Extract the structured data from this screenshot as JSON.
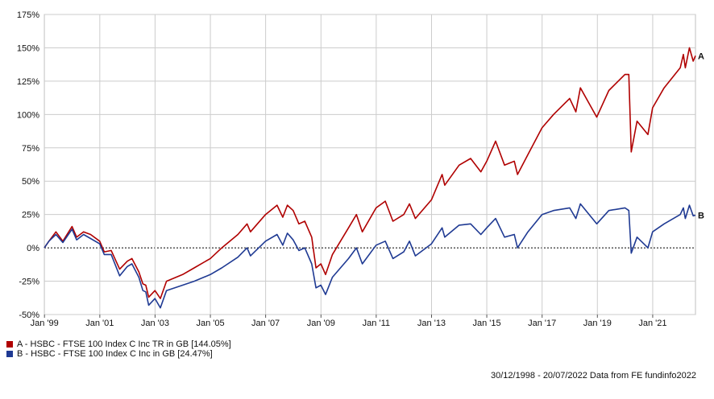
{
  "chart_data": {
    "type": "line",
    "ylim": [
      -50,
      175
    ],
    "y_ticks": [
      -50,
      -25,
      0,
      25,
      50,
      75,
      100,
      125,
      150,
      175
    ],
    "y_tick_labels": [
      "-50%",
      "-25%",
      "0%",
      "25%",
      "50%",
      "75%",
      "100%",
      "125%",
      "150%",
      "175%"
    ],
    "x_range": [
      "1998-12-30",
      "2022-07-20"
    ],
    "x_ticks": [
      "1999-01-01",
      "2001-01-01",
      "2003-01-01",
      "2005-01-01",
      "2007-01-01",
      "2009-01-01",
      "2011-01-01",
      "2013-01-01",
      "2015-01-01",
      "2017-01-01",
      "2019-01-01",
      "2021-01-01"
    ],
    "x_tick_labels": [
      "Jan '99",
      "Jan '01",
      "Jan '03",
      "Jan '05",
      "Jan '07",
      "Jan '09",
      "Jan '11",
      "Jan '13",
      "Jan '15",
      "Jan '17",
      "Jan '19",
      "Jan '21"
    ],
    "grid": true,
    "zero_line": "dotted",
    "legend_position": "bottom-left",
    "series": [
      {
        "name": "A - HSBC - FTSE 100 Index C Inc TR in GB [144.05%]",
        "end_label": "A",
        "color": "#b00000",
        "points": [
          [
            "1998-12-30",
            0
          ],
          [
            "1999-03-01",
            5
          ],
          [
            "1999-06-01",
            12
          ],
          [
            "1999-09-01",
            5
          ],
          [
            "1999-12-31",
            16
          ],
          [
            "2000-03-01",
            8
          ],
          [
            "2000-06-01",
            12
          ],
          [
            "2000-09-01",
            10
          ],
          [
            "2000-12-31",
            5
          ],
          [
            "2001-03-01",
            -3
          ],
          [
            "2001-06-01",
            -2
          ],
          [
            "2001-09-20",
            -16
          ],
          [
            "2001-12-31",
            -10
          ],
          [
            "2002-03-01",
            -8
          ],
          [
            "2002-06-01",
            -18
          ],
          [
            "2002-07-24",
            -27
          ],
          [
            "2002-09-01",
            -28
          ],
          [
            "2002-10-09",
            -37
          ],
          [
            "2002-12-31",
            -32
          ],
          [
            "2003-03-12",
            -38
          ],
          [
            "2003-06-01",
            -25
          ],
          [
            "2003-12-31",
            -20
          ],
          [
            "2004-06-01",
            -15
          ],
          [
            "2004-12-31",
            -8
          ],
          [
            "2005-06-01",
            0
          ],
          [
            "2005-12-31",
            10
          ],
          [
            "2006-05-01",
            18
          ],
          [
            "2006-06-15",
            12
          ],
          [
            "2006-12-31",
            25
          ],
          [
            "2007-06-01",
            32
          ],
          [
            "2007-08-15",
            23
          ],
          [
            "2007-10-15",
            32
          ],
          [
            "2007-12-31",
            28
          ],
          [
            "2008-03-15",
            18
          ],
          [
            "2008-06-01",
            20
          ],
          [
            "2008-09-01",
            8
          ],
          [
            "2008-10-27",
            -15
          ],
          [
            "2008-12-31",
            -12
          ],
          [
            "2009-03-03",
            -20
          ],
          [
            "2009-06-01",
            -5
          ],
          [
            "2009-12-31",
            15
          ],
          [
            "2010-04-15",
            25
          ],
          [
            "2010-07-01",
            12
          ],
          [
            "2010-12-31",
            30
          ],
          [
            "2011-05-01",
            35
          ],
          [
            "2011-08-10",
            20
          ],
          [
            "2011-12-31",
            25
          ],
          [
            "2012-03-15",
            33
          ],
          [
            "2012-06-01",
            22
          ],
          [
            "2012-12-31",
            36
          ],
          [
            "2013-05-20",
            55
          ],
          [
            "2013-06-25",
            47
          ],
          [
            "2013-12-31",
            62
          ],
          [
            "2014-06-01",
            67
          ],
          [
            "2014-10-15",
            57
          ],
          [
            "2014-12-31",
            65
          ],
          [
            "2015-04-27",
            80
          ],
          [
            "2015-08-24",
            62
          ],
          [
            "2015-12-31",
            65
          ],
          [
            "2016-02-11",
            55
          ],
          [
            "2016-06-27",
            70
          ],
          [
            "2016-12-31",
            90
          ],
          [
            "2017-06-01",
            100
          ],
          [
            "2017-12-31",
            112
          ],
          [
            "2018-03-23",
            102
          ],
          [
            "2018-05-22",
            120
          ],
          [
            "2018-12-24",
            98
          ],
          [
            "2019-06-01",
            118
          ],
          [
            "2019-12-31",
            130
          ],
          [
            "2020-02-20",
            130
          ],
          [
            "2020-03-23",
            72
          ],
          [
            "2020-06-08",
            95
          ],
          [
            "2020-10-30",
            85
          ],
          [
            "2020-12-31",
            105
          ],
          [
            "2021-06-01",
            120
          ],
          [
            "2021-12-31",
            135
          ],
          [
            "2022-02-10",
            145
          ],
          [
            "2022-03-08",
            135
          ],
          [
            "2022-05-01",
            150
          ],
          [
            "2022-06-20",
            140
          ],
          [
            "2022-07-20",
            144.05
          ]
        ]
      },
      {
        "name": "B - HSBC - FTSE 100 Index C Inc in GB [24.47%]",
        "end_label": "B",
        "color": "#1f3a93",
        "points": [
          [
            "1998-12-30",
            0
          ],
          [
            "1999-03-01",
            5
          ],
          [
            "1999-06-01",
            10
          ],
          [
            "1999-09-01",
            4
          ],
          [
            "1999-12-31",
            14
          ],
          [
            "2000-03-01",
            6
          ],
          [
            "2000-06-01",
            10
          ],
          [
            "2000-09-01",
            7
          ],
          [
            "2000-12-31",
            3
          ],
          [
            "2001-03-01",
            -5
          ],
          [
            "2001-06-01",
            -5
          ],
          [
            "2001-09-20",
            -21
          ],
          [
            "2001-12-31",
            -14
          ],
          [
            "2002-03-01",
            -12
          ],
          [
            "2002-06-01",
            -22
          ],
          [
            "2002-07-24",
            -32
          ],
          [
            "2002-09-01",
            -33
          ],
          [
            "2002-10-09",
            -43
          ],
          [
            "2002-12-31",
            -38
          ],
          [
            "2003-03-12",
            -45
          ],
          [
            "2003-06-01",
            -32
          ],
          [
            "2003-12-31",
            -28
          ],
          [
            "2004-06-01",
            -25
          ],
          [
            "2004-12-31",
            -20
          ],
          [
            "2005-06-01",
            -15
          ],
          [
            "2005-12-31",
            -7
          ],
          [
            "2006-05-01",
            0
          ],
          [
            "2006-06-15",
            -6
          ],
          [
            "2006-12-31",
            5
          ],
          [
            "2007-06-01",
            10
          ],
          [
            "2007-08-15",
            2
          ],
          [
            "2007-10-15",
            11
          ],
          [
            "2007-12-31",
            6
          ],
          [
            "2008-03-15",
            -2
          ],
          [
            "2008-06-01",
            0
          ],
          [
            "2008-09-01",
            -12
          ],
          [
            "2008-10-27",
            -30
          ],
          [
            "2008-12-31",
            -28
          ],
          [
            "2009-03-03",
            -35
          ],
          [
            "2009-06-01",
            -22
          ],
          [
            "2009-12-31",
            -8
          ],
          [
            "2010-04-15",
            0
          ],
          [
            "2010-07-01",
            -12
          ],
          [
            "2010-12-31",
            2
          ],
          [
            "2011-05-01",
            5
          ],
          [
            "2011-08-10",
            -8
          ],
          [
            "2011-12-31",
            -3
          ],
          [
            "2012-03-15",
            5
          ],
          [
            "2012-06-01",
            -6
          ],
          [
            "2012-12-31",
            3
          ],
          [
            "2013-05-20",
            15
          ],
          [
            "2013-06-25",
            8
          ],
          [
            "2013-12-31",
            17
          ],
          [
            "2014-06-01",
            18
          ],
          [
            "2014-10-15",
            10
          ],
          [
            "2014-12-31",
            15
          ],
          [
            "2015-04-27",
            22
          ],
          [
            "2015-08-24",
            8
          ],
          [
            "2015-12-31",
            10
          ],
          [
            "2016-02-11",
            0
          ],
          [
            "2016-06-27",
            12
          ],
          [
            "2016-12-31",
            25
          ],
          [
            "2017-06-01",
            28
          ],
          [
            "2017-12-31",
            30
          ],
          [
            "2018-03-23",
            22
          ],
          [
            "2018-05-22",
            33
          ],
          [
            "2018-12-24",
            18
          ],
          [
            "2019-06-01",
            28
          ],
          [
            "2019-12-31",
            30
          ],
          [
            "2020-02-20",
            28
          ],
          [
            "2020-03-23",
            -4
          ],
          [
            "2020-06-08",
            8
          ],
          [
            "2020-10-30",
            0
          ],
          [
            "2020-12-31",
            12
          ],
          [
            "2021-06-01",
            18
          ],
          [
            "2021-12-31",
            25
          ],
          [
            "2022-02-10",
            30
          ],
          [
            "2022-03-08",
            22
          ],
          [
            "2022-05-01",
            32
          ],
          [
            "2022-06-20",
            24
          ],
          [
            "2022-07-20",
            24.47
          ]
        ]
      }
    ]
  },
  "legend": [
    {
      "label": "A - HSBC - FTSE 100 Index C Inc TR in GB [144.05%]",
      "color": "#b00000"
    },
    {
      "label": "B - HSBC - FTSE 100 Index C Inc in GB [24.47%]",
      "color": "#1f3a93"
    }
  ],
  "footer": {
    "text": "30/12/1998 - 20/07/2022 Data from FE fundinfo2022"
  }
}
